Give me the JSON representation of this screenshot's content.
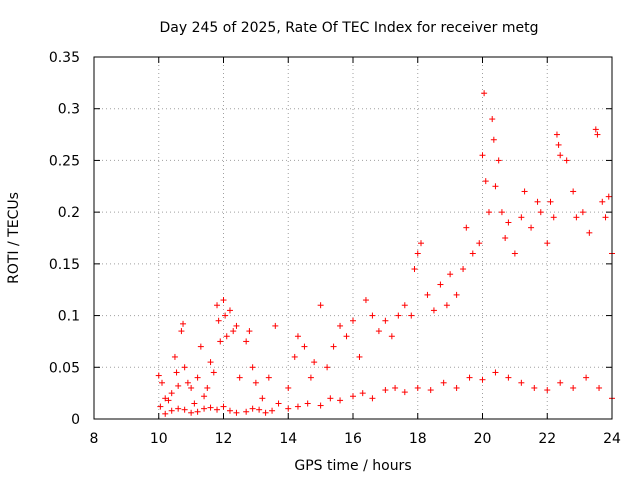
{
  "chart_data": {
    "type": "scatter",
    "title": "Day 245 of 2025, Rate Of TEC Index for receiver metg",
    "xlabel": "GPS time / hours",
    "ylabel": "ROTI / TECUs",
    "xlim": [
      8,
      24
    ],
    "ylim": [
      0,
      0.35
    ],
    "xticks": [
      8,
      10,
      12,
      14,
      16,
      18,
      20,
      22,
      24
    ],
    "yticks": [
      0,
      0.05,
      0.1,
      0.15,
      0.2,
      0.25,
      0.3,
      0.35
    ],
    "ytick_labels": [
      "0",
      "0.05",
      "0.1",
      "0.15",
      "0.2",
      "0.25",
      "0.3",
      "0.35"
    ],
    "grid": true,
    "marker": "+",
    "series_color": "#ff0000",
    "series": [
      {
        "name": "ROTI",
        "points": [
          [
            10.0,
            0.042
          ],
          [
            10.05,
            0.012
          ],
          [
            10.1,
            0.035
          ],
          [
            10.2,
            0.02
          ],
          [
            10.3,
            0.018
          ],
          [
            10.4,
            0.025
          ],
          [
            10.5,
            0.06
          ],
          [
            10.55,
            0.045
          ],
          [
            10.6,
            0.032
          ],
          [
            10.7,
            0.085
          ],
          [
            10.75,
            0.092
          ],
          [
            10.8,
            0.05
          ],
          [
            10.9,
            0.035
          ],
          [
            11.0,
            0.03
          ],
          [
            11.1,
            0.015
          ],
          [
            11.2,
            0.04
          ],
          [
            11.3,
            0.07
          ],
          [
            11.4,
            0.022
          ],
          [
            11.5,
            0.03
          ],
          [
            11.6,
            0.055
          ],
          [
            11.7,
            0.045
          ],
          [
            11.8,
            0.11
          ],
          [
            11.85,
            0.095
          ],
          [
            11.9,
            0.075
          ],
          [
            12.0,
            0.115
          ],
          [
            12.05,
            0.1
          ],
          [
            12.1,
            0.08
          ],
          [
            12.2,
            0.105
          ],
          [
            12.3,
            0.085
          ],
          [
            12.4,
            0.09
          ],
          [
            12.5,
            0.04
          ],
          [
            12.7,
            0.075
          ],
          [
            12.8,
            0.085
          ],
          [
            12.9,
            0.05
          ],
          [
            13.0,
            0.035
          ],
          [
            13.2,
            0.02
          ],
          [
            13.4,
            0.04
          ],
          [
            13.6,
            0.09
          ],
          [
            13.7,
            0.015
          ],
          [
            14.0,
            0.03
          ],
          [
            14.2,
            0.06
          ],
          [
            14.3,
            0.08
          ],
          [
            14.5,
            0.07
          ],
          [
            14.7,
            0.04
          ],
          [
            14.8,
            0.055
          ],
          [
            15.0,
            0.11
          ],
          [
            15.2,
            0.05
          ],
          [
            15.4,
            0.07
          ],
          [
            15.6,
            0.09
          ],
          [
            15.8,
            0.08
          ],
          [
            16.0,
            0.095
          ],
          [
            16.2,
            0.06
          ],
          [
            16.4,
            0.115
          ],
          [
            16.6,
            0.1
          ],
          [
            16.8,
            0.085
          ],
          [
            17.0,
            0.095
          ],
          [
            17.2,
            0.08
          ],
          [
            17.4,
            0.1
          ],
          [
            17.6,
            0.11
          ],
          [
            17.8,
            0.1
          ],
          [
            17.9,
            0.145
          ],
          [
            18.0,
            0.16
          ],
          [
            18.1,
            0.17
          ],
          [
            18.3,
            0.12
          ],
          [
            18.5,
            0.105
          ],
          [
            18.7,
            0.13
          ],
          [
            18.9,
            0.11
          ],
          [
            19.0,
            0.14
          ],
          [
            19.2,
            0.12
          ],
          [
            19.4,
            0.145
          ],
          [
            19.5,
            0.185
          ],
          [
            19.7,
            0.16
          ],
          [
            19.9,
            0.17
          ],
          [
            20.0,
            0.255
          ],
          [
            20.05,
            0.315
          ],
          [
            20.1,
            0.23
          ],
          [
            20.2,
            0.2
          ],
          [
            20.3,
            0.29
          ],
          [
            20.35,
            0.27
          ],
          [
            20.4,
            0.225
          ],
          [
            20.5,
            0.25
          ],
          [
            20.6,
            0.2
          ],
          [
            20.7,
            0.175
          ],
          [
            20.8,
            0.19
          ],
          [
            21.0,
            0.16
          ],
          [
            21.2,
            0.195
          ],
          [
            21.3,
            0.22
          ],
          [
            21.5,
            0.185
          ],
          [
            21.7,
            0.21
          ],
          [
            21.8,
            0.2
          ],
          [
            22.0,
            0.17
          ],
          [
            22.1,
            0.21
          ],
          [
            22.2,
            0.195
          ],
          [
            22.3,
            0.275
          ],
          [
            22.35,
            0.265
          ],
          [
            22.4,
            0.255
          ],
          [
            22.6,
            0.25
          ],
          [
            22.8,
            0.22
          ],
          [
            22.9,
            0.195
          ],
          [
            23.1,
            0.2
          ],
          [
            23.3,
            0.18
          ],
          [
            23.5,
            0.28
          ],
          [
            23.55,
            0.275
          ],
          [
            23.7,
            0.21
          ],
          [
            23.8,
            0.195
          ],
          [
            23.9,
            0.215
          ],
          [
            24.0,
            0.16
          ],
          [
            10.2,
            0.005
          ],
          [
            10.4,
            0.008
          ],
          [
            10.6,
            0.01
          ],
          [
            10.8,
            0.009
          ],
          [
            11.0,
            0.006
          ],
          [
            11.2,
            0.007
          ],
          [
            11.4,
            0.01
          ],
          [
            11.6,
            0.011
          ],
          [
            11.8,
            0.009
          ],
          [
            12.0,
            0.012
          ],
          [
            12.2,
            0.008
          ],
          [
            12.4,
            0.006
          ],
          [
            12.7,
            0.007
          ],
          [
            12.9,
            0.01
          ],
          [
            13.1,
            0.009
          ],
          [
            13.3,
            0.006
          ],
          [
            13.5,
            0.008
          ],
          [
            14.0,
            0.01
          ],
          [
            14.3,
            0.012
          ],
          [
            14.6,
            0.015
          ],
          [
            15.0,
            0.013
          ],
          [
            15.3,
            0.02
          ],
          [
            15.6,
            0.018
          ],
          [
            16.0,
            0.022
          ],
          [
            16.3,
            0.025
          ],
          [
            16.6,
            0.02
          ],
          [
            17.0,
            0.028
          ],
          [
            17.3,
            0.03
          ],
          [
            17.6,
            0.026
          ],
          [
            18.0,
            0.03
          ],
          [
            18.4,
            0.028
          ],
          [
            18.8,
            0.035
          ],
          [
            19.2,
            0.03
          ],
          [
            19.6,
            0.04
          ],
          [
            20.0,
            0.038
          ],
          [
            20.4,
            0.045
          ],
          [
            20.8,
            0.04
          ],
          [
            21.2,
            0.035
          ],
          [
            21.6,
            0.03
          ],
          [
            22.0,
            0.028
          ],
          [
            22.4,
            0.035
          ],
          [
            22.8,
            0.03
          ],
          [
            23.2,
            0.04
          ],
          [
            23.6,
            0.03
          ],
          [
            24.0,
            0.02
          ]
        ]
      }
    ]
  }
}
